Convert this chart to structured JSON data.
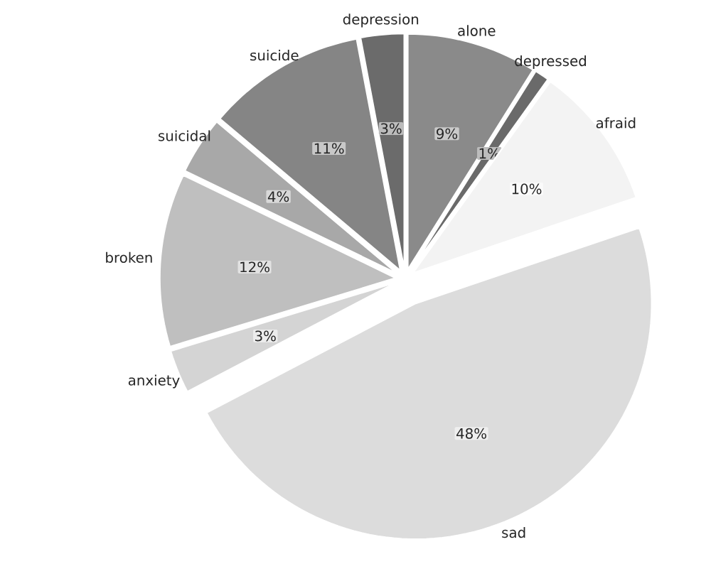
{
  "chart_data": {
    "type": "pie",
    "categories": [
      "alone",
      "depressed",
      "afraid",
      "sad",
      "anxiety",
      "broken",
      "suicidal",
      "suicide",
      "depression"
    ],
    "values": [
      9,
      1,
      10,
      48,
      3,
      12,
      4,
      11,
      3
    ],
    "value_labels": [
      "9%",
      "1%",
      "10%",
      "48%",
      "3%",
      "12%",
      "4%",
      "11%",
      "3%"
    ],
    "colors": [
      "#8a8a8a",
      "#6a6a6a",
      "#f3f3f3",
      "#dcdcdc",
      "#d4d4d4",
      "#bfbfbf",
      "#a8a8a8",
      "#858585",
      "#6b6b6b"
    ]
  }
}
